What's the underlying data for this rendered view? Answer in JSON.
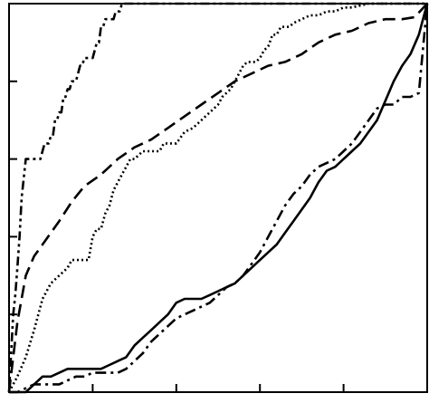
{
  "chart_data": {
    "type": "line",
    "title": "",
    "xlabel": "",
    "ylabel": "",
    "xlim": [
      0,
      1
    ],
    "ylim": [
      0,
      1
    ],
    "xticks": [
      0,
      0.2,
      0.4,
      0.6,
      0.8,
      1.0
    ],
    "yticks": [
      0,
      0.2,
      0.4,
      0.6,
      0.8,
      1.0
    ],
    "grid": false,
    "legend": "none",
    "series": [
      {
        "style": "dash-dot-dot",
        "x": [
          0,
          0.005,
          0.01,
          0.015,
          0.02,
          0.025,
          0.03,
          0.035,
          0.04,
          0.05,
          0.06,
          0.075,
          0.085,
          0.09,
          0.095,
          0.1,
          0.105,
          0.11,
          0.115,
          0.12,
          0.125,
          0.13,
          0.135,
          0.14,
          0.145,
          0.15,
          0.155,
          0.16,
          0.17,
          0.175,
          0.18,
          0.19,
          0.2,
          0.21,
          0.215,
          0.22,
          0.225,
          0.23,
          0.235,
          0.24,
          0.25,
          0.255,
          0.26,
          0.265,
          0.27,
          0.28,
          0.285,
          0.29,
          0.295,
          1.0
        ],
        "y": [
          0,
          0.1,
          0.2,
          0.25,
          0.32,
          0.4,
          0.5,
          0.55,
          0.6,
          0.6,
          0.6,
          0.6,
          0.64,
          0.64,
          0.64,
          0.66,
          0.66,
          0.7,
          0.7,
          0.72,
          0.72,
          0.76,
          0.76,
          0.78,
          0.78,
          0.8,
          0.8,
          0.8,
          0.84,
          0.84,
          0.86,
          0.86,
          0.86,
          0.9,
          0.9,
          0.94,
          0.94,
          0.96,
          0.96,
          0.96,
          0.96,
          0.98,
          0.98,
          0.98,
          1.0,
          1.0,
          1.0,
          1.0,
          1.0,
          1.0
        ]
      },
      {
        "style": "dashed",
        "x": [
          0,
          0.02,
          0.04,
          0.06,
          0.08,
          0.1,
          0.12,
          0.15,
          0.18,
          0.22,
          0.26,
          0.3,
          0.34,
          0.38,
          0.42,
          0.46,
          0.5,
          0.54,
          0.58,
          0.62,
          0.66,
          0.7,
          0.74,
          0.78,
          0.82,
          0.86,
          0.9,
          0.94,
          0.97,
          1.0
        ],
        "y": [
          0,
          0.18,
          0.3,
          0.35,
          0.38,
          0.41,
          0.44,
          0.49,
          0.53,
          0.56,
          0.6,
          0.63,
          0.65,
          0.68,
          0.71,
          0.74,
          0.77,
          0.8,
          0.82,
          0.84,
          0.85,
          0.87,
          0.9,
          0.92,
          0.93,
          0.95,
          0.96,
          0.96,
          0.965,
          1.0
        ]
      },
      {
        "style": "dotted",
        "x": [
          0,
          0.02,
          0.04,
          0.06,
          0.08,
          0.1,
          0.12,
          0.13,
          0.14,
          0.15,
          0.16,
          0.17,
          0.18,
          0.19,
          0.2,
          0.21,
          0.22,
          0.23,
          0.24,
          0.25,
          0.26,
          0.27,
          0.28,
          0.29,
          0.3,
          0.31,
          0.32,
          0.33,
          0.34,
          0.35,
          0.36,
          0.37,
          0.38,
          0.4,
          0.42,
          0.44,
          0.46,
          0.48,
          0.5,
          0.51,
          0.52,
          0.53,
          0.54,
          0.55,
          0.56,
          0.57,
          0.58,
          0.59,
          0.6,
          0.61,
          0.62,
          0.63,
          0.64,
          0.65,
          0.66,
          0.67,
          0.68,
          0.7,
          0.72,
          0.74,
          0.76,
          0.78,
          0.8,
          0.82,
          0.84,
          0.86,
          0.88,
          0.9,
          1.0
        ],
        "y": [
          0,
          0.04,
          0.09,
          0.16,
          0.24,
          0.28,
          0.3,
          0.31,
          0.32,
          0.34,
          0.34,
          0.34,
          0.34,
          0.34,
          0.4,
          0.42,
          0.42,
          0.46,
          0.48,
          0.52,
          0.54,
          0.56,
          0.58,
          0.6,
          0.6,
          0.61,
          0.62,
          0.62,
          0.62,
          0.62,
          0.62,
          0.64,
          0.64,
          0.64,
          0.67,
          0.68,
          0.7,
          0.72,
          0.74,
          0.76,
          0.77,
          0.78,
          0.8,
          0.82,
          0.84,
          0.85,
          0.85,
          0.85,
          0.86,
          0.88,
          0.89,
          0.92,
          0.92,
          0.94,
          0.94,
          0.94,
          0.95,
          0.96,
          0.97,
          0.97,
          0.98,
          0.98,
          0.99,
          0.99,
          0.995,
          1.0,
          1.0,
          1.0,
          1.0
        ]
      },
      {
        "style": "solid",
        "x": [
          0,
          0.04,
          0.06,
          0.08,
          0.1,
          0.14,
          0.18,
          0.22,
          0.24,
          0.26,
          0.28,
          0.3,
          0.32,
          0.34,
          0.36,
          0.38,
          0.4,
          0.42,
          0.44,
          0.46,
          0.48,
          0.5,
          0.52,
          0.54,
          0.56,
          0.58,
          0.6,
          0.62,
          0.64,
          0.66,
          0.68,
          0.7,
          0.72,
          0.74,
          0.76,
          0.78,
          0.8,
          0.82,
          0.84,
          0.86,
          0.88,
          0.9,
          0.92,
          0.94,
          0.96,
          0.98,
          1.0
        ],
        "y": [
          0,
          0.0,
          0.02,
          0.04,
          0.04,
          0.06,
          0.06,
          0.06,
          0.07,
          0.08,
          0.09,
          0.12,
          0.14,
          0.16,
          0.18,
          0.2,
          0.23,
          0.24,
          0.24,
          0.24,
          0.25,
          0.26,
          0.27,
          0.28,
          0.3,
          0.32,
          0.34,
          0.36,
          0.38,
          0.41,
          0.44,
          0.47,
          0.5,
          0.54,
          0.57,
          0.58,
          0.6,
          0.62,
          0.64,
          0.67,
          0.7,
          0.75,
          0.8,
          0.84,
          0.87,
          0.92,
          1.0
        ]
      },
      {
        "style": "dash-dot",
        "x": [
          0,
          0.02,
          0.04,
          0.06,
          0.08,
          0.1,
          0.12,
          0.14,
          0.16,
          0.18,
          0.2,
          0.22,
          0.24,
          0.26,
          0.28,
          0.3,
          0.32,
          0.34,
          0.36,
          0.38,
          0.4,
          0.42,
          0.44,
          0.46,
          0.48,
          0.5,
          0.52,
          0.54,
          0.56,
          0.58,
          0.6,
          0.62,
          0.64,
          0.66,
          0.68,
          0.7,
          0.72,
          0.74,
          0.76,
          0.78,
          0.8,
          0.82,
          0.84,
          0.86,
          0.88,
          0.9,
          0.92,
          0.94,
          0.96,
          0.98,
          1.0
        ],
        "y": [
          0,
          0.0,
          0.01,
          0.02,
          0.02,
          0.02,
          0.02,
          0.03,
          0.04,
          0.04,
          0.05,
          0.05,
          0.05,
          0.05,
          0.06,
          0.08,
          0.1,
          0.13,
          0.15,
          0.17,
          0.19,
          0.2,
          0.21,
          0.22,
          0.23,
          0.25,
          0.27,
          0.28,
          0.3,
          0.33,
          0.36,
          0.4,
          0.44,
          0.48,
          0.51,
          0.53,
          0.56,
          0.58,
          0.59,
          0.6,
          0.62,
          0.64,
          0.67,
          0.7,
          0.73,
          0.74,
          0.74,
          0.76,
          0.76,
          0.77,
          1.0
        ]
      }
    ]
  }
}
